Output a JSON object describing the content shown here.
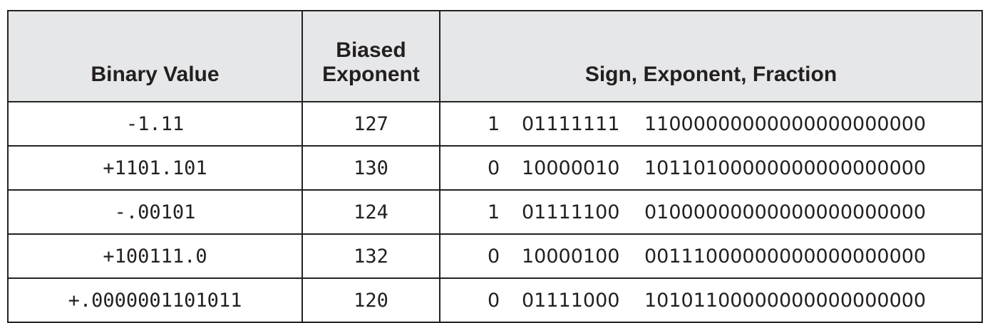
{
  "headers": {
    "binary_value": "Binary Value",
    "biased_exponent_line1": "Biased",
    "biased_exponent_line2": "Exponent",
    "sign_exponent_fraction": "Sign, Exponent, Fraction"
  },
  "rows": [
    {
      "binary_value": "-1.11",
      "biased_exponent": "127",
      "sign": "1",
      "exponent": "01111111",
      "fraction": "11000000000000000000000"
    },
    {
      "binary_value": "+1101.101",
      "biased_exponent": "130",
      "sign": "0",
      "exponent": "10000010",
      "fraction": "10110100000000000000000"
    },
    {
      "binary_value": "-.00101",
      "biased_exponent": "124",
      "sign": "1",
      "exponent": "01111100",
      "fraction": "01000000000000000000000"
    },
    {
      "binary_value": "+100111.0",
      "biased_exponent": "132",
      "sign": "0",
      "exponent": "10000100",
      "fraction": "00111000000000000000000"
    },
    {
      "binary_value": "+.0000001101011",
      "biased_exponent": "120",
      "sign": "0",
      "exponent": "01111000",
      "fraction": "10101100000000000000000"
    }
  ]
}
